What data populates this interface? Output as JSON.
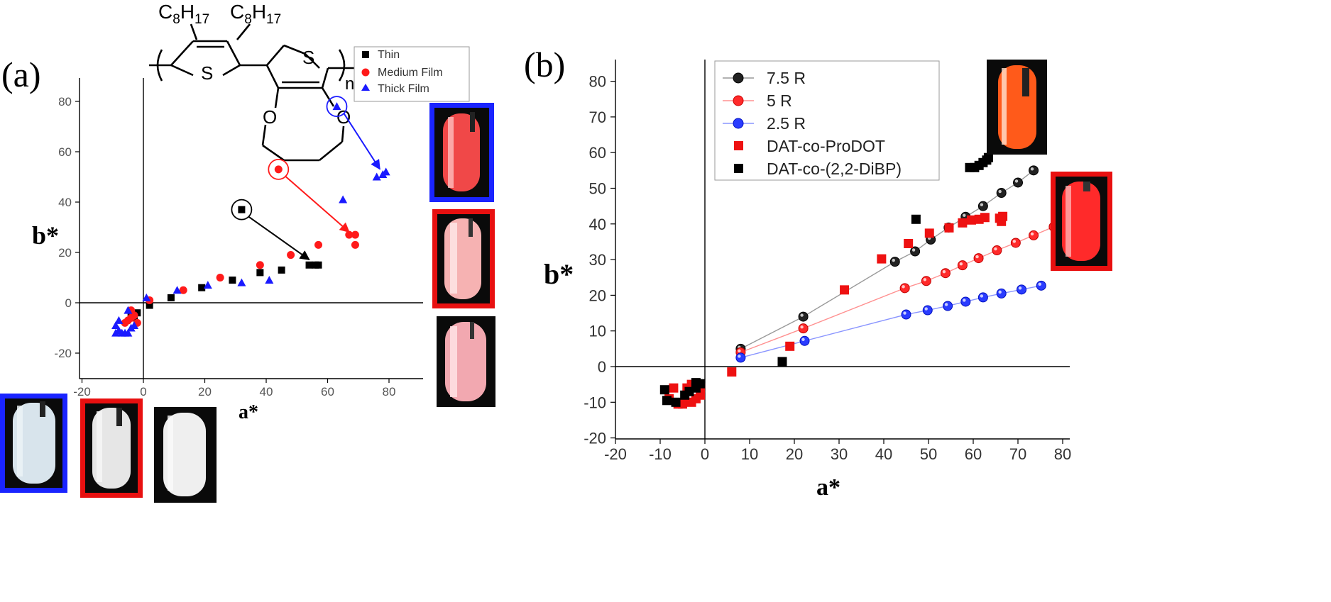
{
  "figure": {
    "colors": {
      "thin": "#000000",
      "medium": "#ff1a1a",
      "thick": "#1a1aff",
      "r75": "#222222",
      "r5": "#ff2a2a",
      "r25": "#2a3cff",
      "prodot": "#ee1111",
      "dibp": "#000000",
      "line_r75": "#999999",
      "line_r5": "#ff9090",
      "line_r25": "#8a95ff"
    },
    "structure": {
      "sub_left": "C8H17",
      "sub_right": "C8H17",
      "s_left": "S",
      "s_right": "S",
      "o_left": "O",
      "o_right": "O",
      "repeat": "n"
    },
    "photo_icons": [
      "vial-photo-icon",
      "vial-photo-icon",
      "vial-photo-icon",
      "vial-photo-icon",
      "vial-photo-icon",
      "vial-photo-icon",
      "vial-photo-icon",
      "vial-photo-icon"
    ]
  },
  "chart_data": [
    {
      "type": "scatter",
      "panel_label": "(a)",
      "xlabel": "a*",
      "ylabel": "b*",
      "xlim": [
        -20,
        90
      ],
      "ylim": [
        -30,
        90
      ],
      "xticks": [
        -20,
        0,
        20,
        40,
        60,
        80
      ],
      "yticks": [
        -20,
        0,
        20,
        40,
        60,
        80
      ],
      "grid": false,
      "legend_position": "top-right",
      "series": [
        {
          "name": "Thin",
          "marker": "square",
          "points": [
            [
              -3,
              -6
            ],
            [
              -4,
              -5
            ],
            [
              -2,
              -4
            ],
            [
              2,
              -1
            ],
            [
              9,
              2
            ],
            [
              19,
              6
            ],
            [
              29,
              9
            ],
            [
              38,
              12
            ],
            [
              45,
              13
            ],
            [
              54,
              15
            ],
            [
              56,
              15
            ],
            [
              57,
              15
            ]
          ],
          "highlight": [
            32,
            37
          ]
        },
        {
          "name": "Medium Film",
          "marker": "circle",
          "points": [
            [
              -6,
              -8
            ],
            [
              -5,
              -7
            ],
            [
              -4,
              -6
            ],
            [
              -3,
              -5
            ],
            [
              -2,
              -8
            ],
            [
              -4,
              -3
            ],
            [
              2,
              1
            ],
            [
              13,
              5
            ],
            [
              25,
              10
            ],
            [
              38,
              15
            ],
            [
              48,
              19
            ],
            [
              57,
              23
            ],
            [
              67,
              27
            ],
            [
              69,
              27
            ],
            [
              69,
              23
            ]
          ],
          "highlight": [
            44,
            53
          ]
        },
        {
          "name": "Thick Film",
          "marker": "triangle",
          "points": [
            [
              -9,
              -12
            ],
            [
              -8,
              -11
            ],
            [
              -7,
              -12
            ],
            [
              -6,
              -12
            ],
            [
              -5,
              -12
            ],
            [
              -4,
              -10
            ],
            [
              -3,
              -9
            ],
            [
              -9,
              -9
            ],
            [
              -8,
              -7
            ],
            [
              -5,
              -3
            ],
            [
              1,
              2
            ],
            [
              11,
              5
            ],
            [
              21,
              7
            ],
            [
              32,
              8
            ],
            [
              41,
              9
            ],
            [
              65,
              41
            ],
            [
              76,
              50
            ],
            [
              78,
              51
            ],
            [
              79,
              52
            ]
          ],
          "highlight": [
            63,
            78
          ]
        }
      ],
      "annotations": [
        {
          "series": "Thin",
          "from": [
            32,
            37
          ],
          "to": [
            54,
            16
          ]
        },
        {
          "series": "Medium Film",
          "from": [
            44,
            53
          ],
          "to": [
            67,
            27
          ]
        },
        {
          "series": "Thick Film",
          "from": [
            63,
            78
          ],
          "to": [
            77,
            52
          ]
        }
      ]
    },
    {
      "type": "scatter",
      "panel_label": "(b)",
      "xlabel": "a*",
      "ylabel": "b*",
      "xlim": [
        -20,
        85
      ],
      "ylim": [
        -20,
        85
      ],
      "xticks": [
        -20,
        -10,
        0,
        10,
        20,
        30,
        40,
        50,
        60,
        70,
        80
      ],
      "yticks": [
        -20,
        -10,
        0,
        10,
        20,
        30,
        40,
        50,
        60,
        70,
        80
      ],
      "grid": false,
      "legend_position": "top-left",
      "series": [
        {
          "name": "7.5 R",
          "marker": "circle",
          "line": true,
          "points": [
            [
              8,
              5
            ],
            [
              22,
              14
            ],
            [
              42.5,
              29.4
            ],
            [
              47,
              32.3
            ],
            [
              50.5,
              35.6
            ],
            [
              54.5,
              39
            ],
            [
              58.3,
              42
            ],
            [
              62.2,
              45
            ],
            [
              66.3,
              48.7
            ],
            [
              70,
              51.6
            ],
            [
              73.5,
              55
            ]
          ]
        },
        {
          "name": "5 R",
          "marker": "circle",
          "line": true,
          "points": [
            [
              8,
              4
            ],
            [
              22,
              10.7
            ],
            [
              44.7,
              22
            ],
            [
              49.5,
              24
            ],
            [
              53.8,
              26.2
            ],
            [
              57.6,
              28.4
            ],
            [
              61.2,
              30.4
            ],
            [
              65.3,
              32.6
            ],
            [
              69.5,
              34.7
            ],
            [
              73.5,
              36.8
            ],
            [
              78,
              39.2
            ]
          ]
        },
        {
          "name": "2.5 R",
          "marker": "circle",
          "line": true,
          "points": [
            [
              8,
              2.5
            ],
            [
              22.3,
              7.2
            ],
            [
              45,
              14.6
            ],
            [
              49.8,
              15.8
            ],
            [
              54.3,
              17
            ],
            [
              58.3,
              18.2
            ],
            [
              62.2,
              19.4
            ],
            [
              66.3,
              20.5
            ],
            [
              70.8,
              21.6
            ],
            [
              75.2,
              22.7
            ]
          ]
        },
        {
          "name": "DAT-co-ProDOT",
          "marker": "square",
          "line": false,
          "points": [
            [
              -7,
              -6
            ],
            [
              -8,
              -9
            ],
            [
              -6,
              -10.5
            ],
            [
              -5,
              -10.5
            ],
            [
              -3,
              -10
            ],
            [
              -2,
              -9
            ],
            [
              -1,
              -8
            ],
            [
              -1,
              -6
            ],
            [
              -3,
              -5
            ],
            [
              -4,
              -6
            ],
            [
              6,
              -1.5
            ],
            [
              19,
              5.7
            ],
            [
              31.2,
              21.5
            ],
            [
              39.5,
              30.2
            ],
            [
              45.5,
              34.5
            ],
            [
              50.2,
              37.4
            ],
            [
              54.6,
              38.9
            ],
            [
              57.6,
              40.3
            ],
            [
              59.6,
              41.1
            ],
            [
              61.3,
              41.3
            ],
            [
              62.6,
              41.8
            ],
            [
              65.9,
              41.6
            ],
            [
              66.3,
              40.7
            ],
            [
              66.6,
              42.1
            ]
          ]
        },
        {
          "name": "DAT-co-(2,2-DiBP)",
          "marker": "square",
          "line": false,
          "points": [
            [
              -9,
              -6.5
            ],
            [
              -8.5,
              -9.5
            ],
            [
              -6.5,
              -10
            ],
            [
              -4.5,
              -8
            ],
            [
              -3.5,
              -7
            ],
            [
              -2,
              -6
            ],
            [
              -2,
              -4.5
            ],
            [
              -1,
              -4.8
            ],
            [
              17.3,
              1.4
            ],
            [
              47.2,
              41.3
            ],
            [
              59.2,
              55.8
            ],
            [
              60.3,
              55.8
            ],
            [
              61.3,
              56.4
            ],
            [
              62.2,
              57.2
            ],
            [
              63,
              57.9
            ],
            [
              63.4,
              58.6
            ]
          ]
        }
      ]
    }
  ]
}
